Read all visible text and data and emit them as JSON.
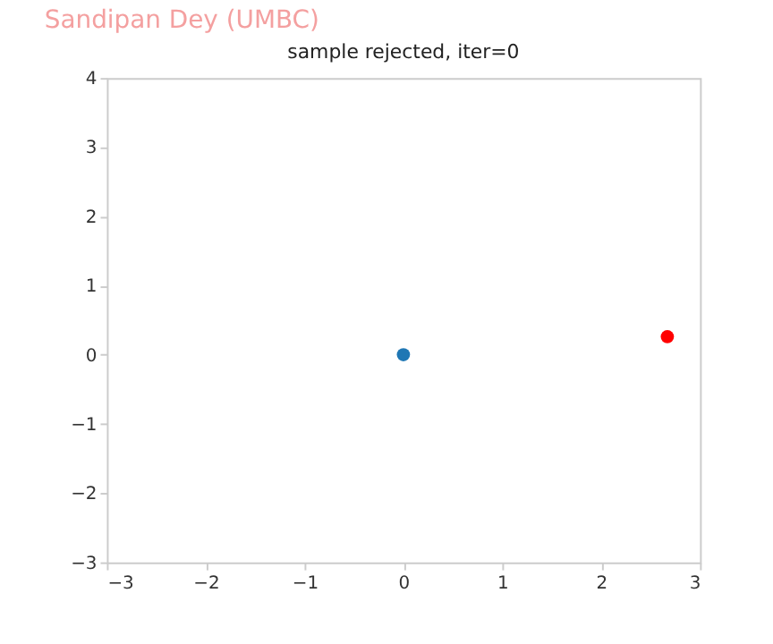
{
  "chart_data": {
    "type": "scatter",
    "title": "sample rejected, iter=0",
    "annotations": [
      "Sandipan Dey (UMBC)"
    ],
    "series": [
      {
        "color": "#1f77b4",
        "x": [
          0
        ],
        "values": [
          0
        ]
      },
      {
        "color": "#ff0000",
        "x": [
          2.67
        ],
        "values": [
          0.26
        ]
      }
    ],
    "xlim": [
      -3,
      3
    ],
    "xticks": [
      -3,
      -2,
      -1,
      0,
      1,
      2,
      3
    ],
    "ylim": [
      -3,
      4
    ],
    "yticks": [
      -3,
      -2,
      -1,
      0,
      1,
      2,
      3,
      4
    ],
    "grid": false,
    "marker": "circle"
  }
}
